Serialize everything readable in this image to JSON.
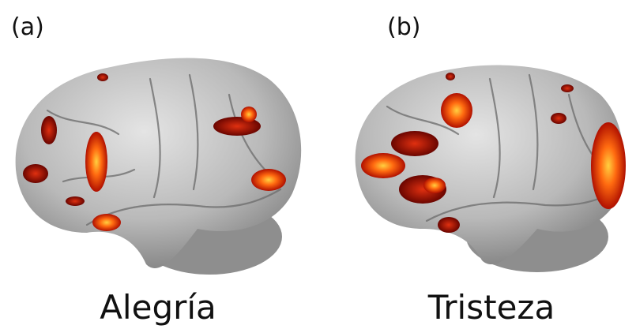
{
  "panels": [
    {
      "label": "(a)",
      "caption": "Alegría"
    },
    {
      "label": "(b)",
      "caption": "Tristeza"
    }
  ]
}
